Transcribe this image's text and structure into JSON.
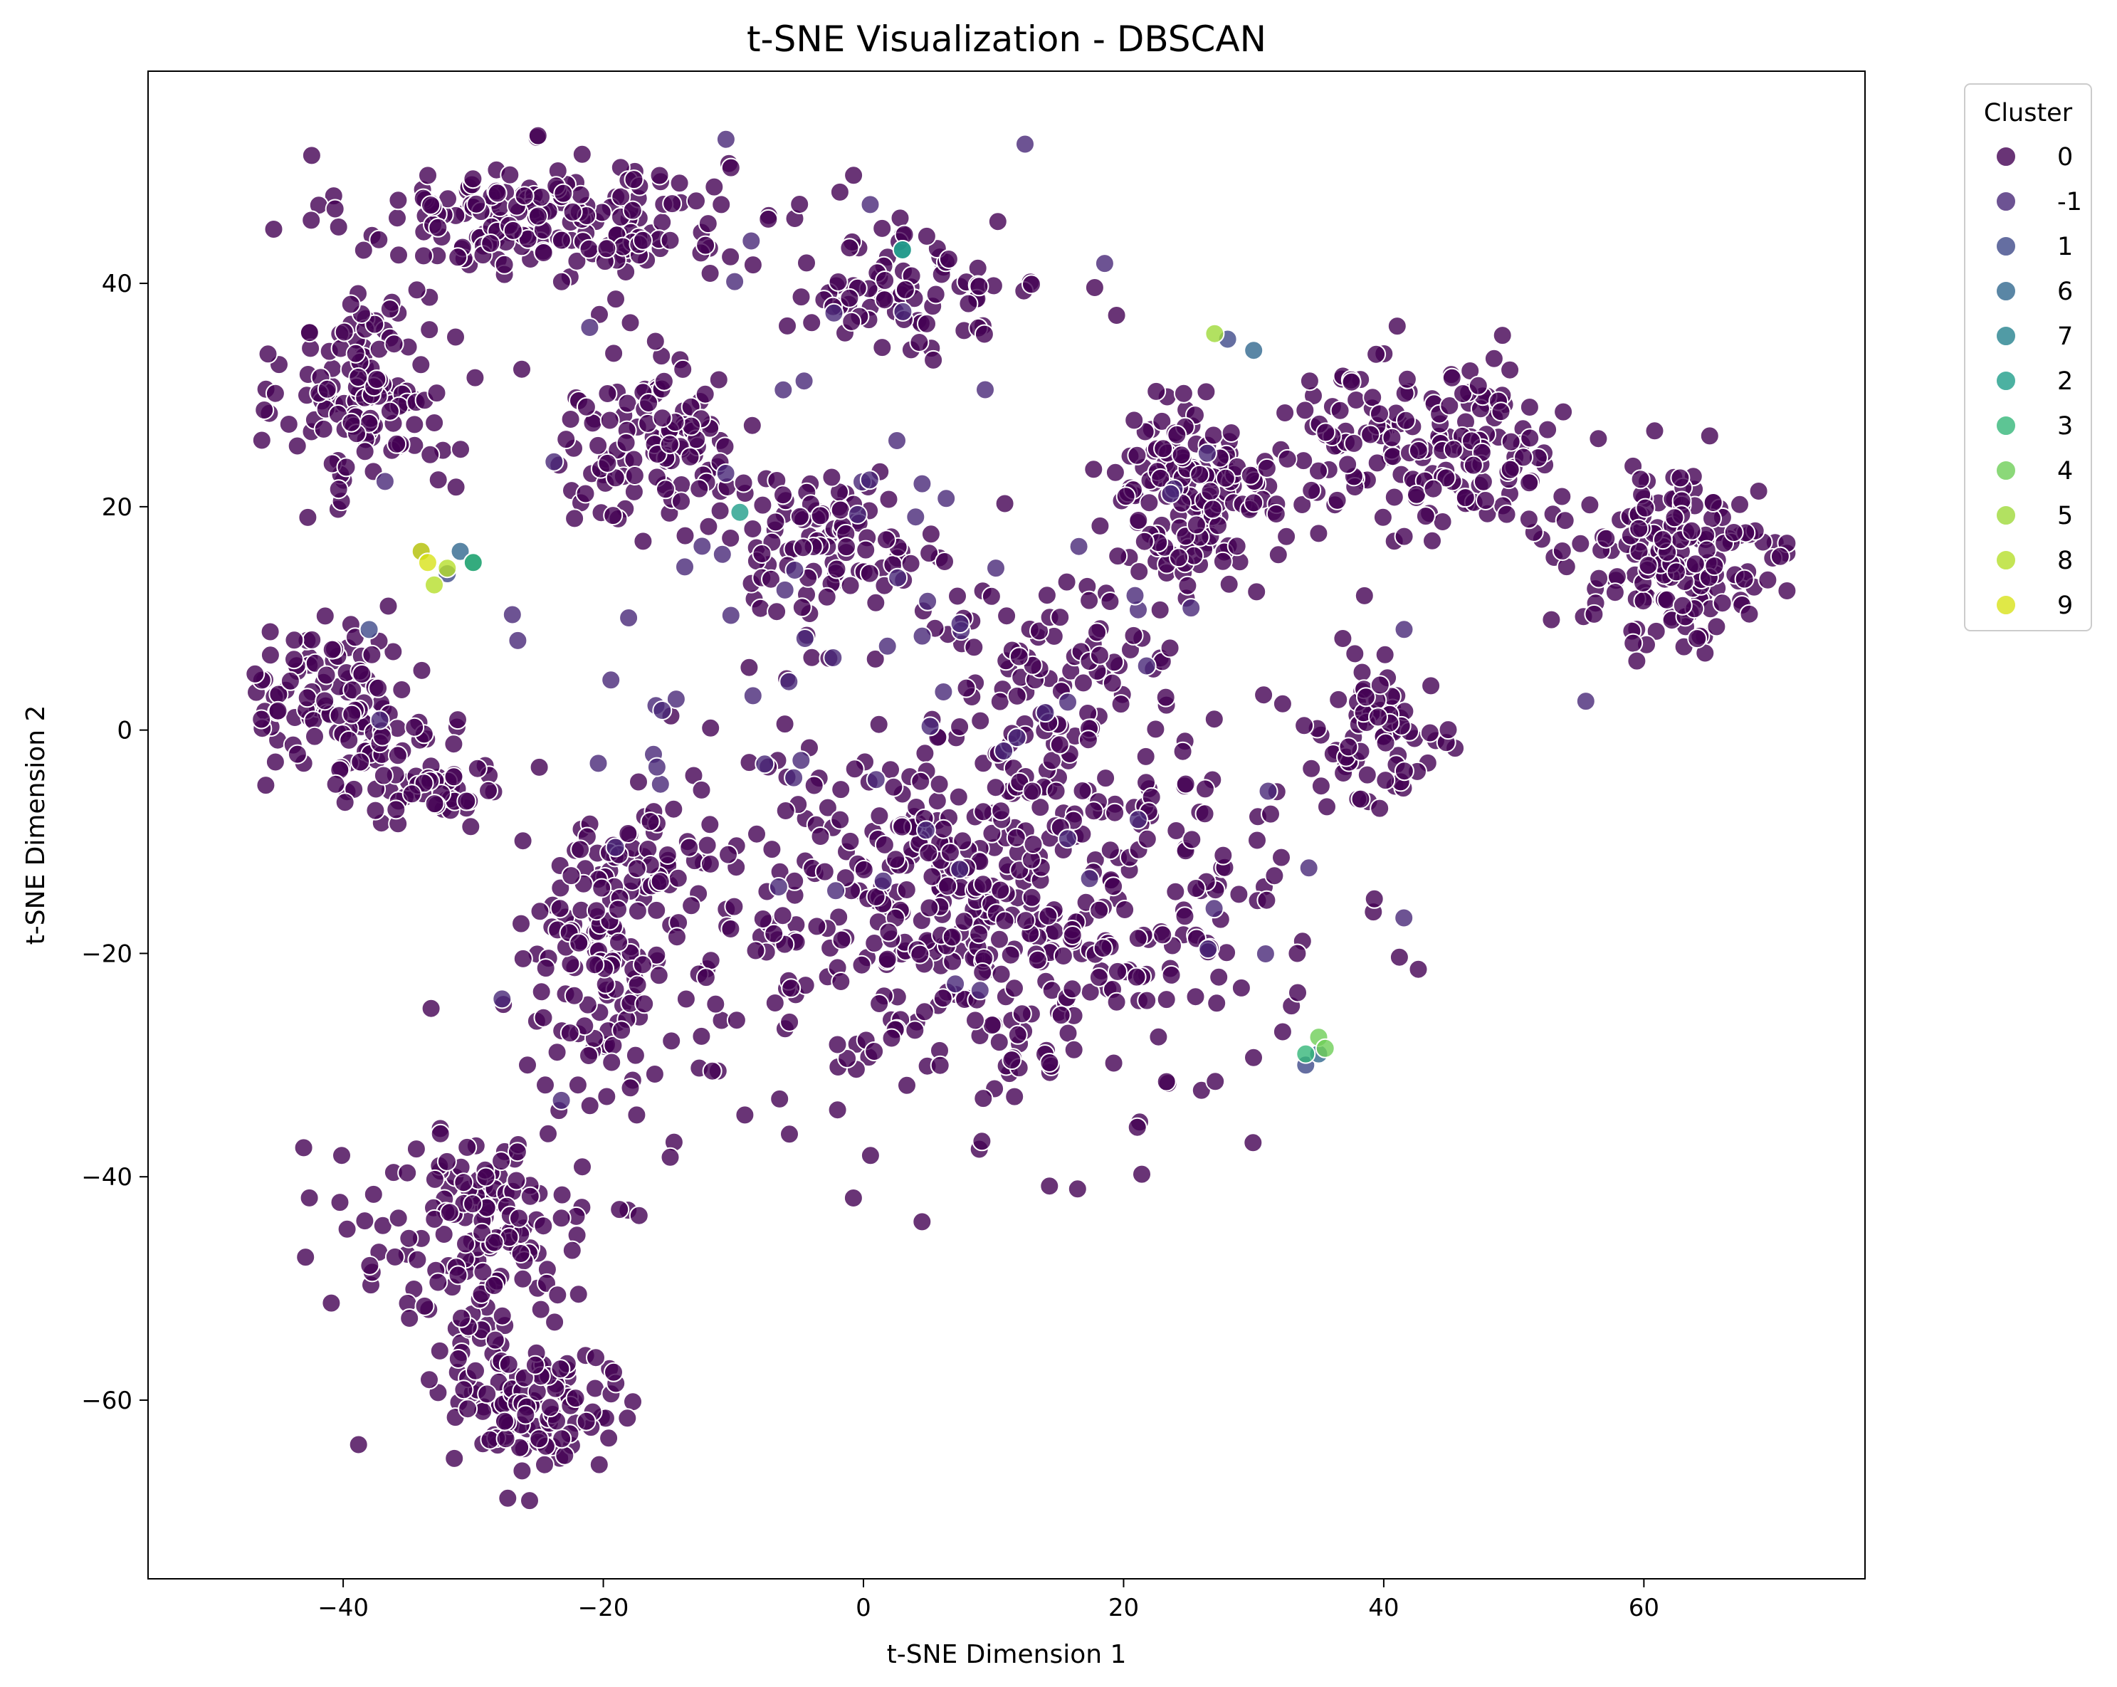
{
  "chart_data": {
    "type": "scatter",
    "title": "t-SNE Visualization - DBSCAN",
    "xlabel": "t-SNE Dimension 1",
    "ylabel": "t-SNE Dimension 2",
    "xlim": [
      -55,
      77
    ],
    "ylim": [
      -76,
      59
    ],
    "x_ticks": [
      -40,
      -20,
      0,
      20,
      40,
      60
    ],
    "y_ticks": [
      -60,
      -40,
      -20,
      0,
      20,
      40
    ],
    "grid": false,
    "legend": {
      "title": "Cluster",
      "placement": "outside-top-right",
      "entries": [
        {
          "label": "0",
          "color": "#440154"
        },
        {
          "label": "-1",
          "color": "#482878"
        },
        {
          "label": "1",
          "color": "#3e4a89"
        },
        {
          "label": "6",
          "color": "#31688e"
        },
        {
          "label": "7",
          "color": "#26828e"
        },
        {
          "label": "2",
          "color": "#1f9e89"
        },
        {
          "label": "3",
          "color": "#35b779"
        },
        {
          "label": "4",
          "color": "#6ece58"
        },
        {
          "label": "5",
          "color": "#9fda3a"
        },
        {
          "label": "8",
          "color": "#b5de2b"
        },
        {
          "label": "9",
          "color": "#d8e219"
        }
      ]
    },
    "point_alpha": 0.8,
    "regions": [
      {
        "series": "0",
        "center": [
          -25,
          46
        ],
        "spread": [
          9,
          3.5
        ],
        "count": 190
      },
      {
        "series": "0",
        "center": [
          -38,
          30
        ],
        "spread": [
          4,
          6
        ],
        "count": 130
      },
      {
        "series": "0",
        "center": [
          -16,
          26
        ],
        "spread": [
          5,
          5
        ],
        "count": 110
      },
      {
        "series": "0",
        "center": [
          3,
          40
        ],
        "spread": [
          7,
          4
        ],
        "count": 90
      },
      {
        "series": "0",
        "center": [
          -3,
          17
        ],
        "spread": [
          6,
          4
        ],
        "count": 100
      },
      {
        "series": "0",
        "center": [
          -41,
          3
        ],
        "spread": [
          4,
          4
        ],
        "count": 90
      },
      {
        "series": "0",
        "center": [
          -34,
          -4
        ],
        "spread": [
          4,
          3
        ],
        "count": 70
      },
      {
        "series": "0",
        "center": [
          10,
          -15
        ],
        "spread": [
          14,
          12
        ],
        "count": 560
      },
      {
        "series": "0",
        "center": [
          15,
          5
        ],
        "spread": [
          6,
          5
        ],
        "count": 60
      },
      {
        "series": "0",
        "center": [
          -20,
          -20
        ],
        "spread": [
          4,
          7
        ],
        "count": 130
      },
      {
        "series": "0",
        "center": [
          -30,
          -45
        ],
        "spread": [
          6,
          6
        ],
        "count": 150
      },
      {
        "series": "0",
        "center": [
          -26,
          -60
        ],
        "spread": [
          5,
          5
        ],
        "count": 120
      },
      {
        "series": "0",
        "center": [
          25,
          20
        ],
        "spread": [
          4,
          6
        ],
        "count": 140
      },
      {
        "series": "0",
        "center": [
          42,
          25
        ],
        "spread": [
          9,
          5
        ],
        "count": 190
      },
      {
        "series": "0",
        "center": [
          63,
          15
        ],
        "spread": [
          5,
          5
        ],
        "count": 160
      },
      {
        "series": "0",
        "center": [
          40,
          0
        ],
        "spread": [
          3,
          4
        ],
        "count": 70
      },
      {
        "series": "0",
        "center": [
          -17,
          -12
        ],
        "spread": [
          3,
          3
        ],
        "count": 35
      },
      {
        "series": "-1",
        "center": [
          0,
          10
        ],
        "spread": [
          22,
          22
        ],
        "count": 90
      }
    ],
    "points": [
      {
        "series": "1",
        "x": -32,
        "y": 14
      },
      {
        "series": "1",
        "x": -30,
        "y": 15
      },
      {
        "series": "1",
        "x": -34,
        "y": 16
      },
      {
        "series": "1",
        "x": -38,
        "y": 9
      },
      {
        "series": "1",
        "x": 28,
        "y": 35
      },
      {
        "series": "1",
        "x": 34,
        "y": -30
      },
      {
        "series": "6",
        "x": -31,
        "y": 16
      },
      {
        "series": "6",
        "x": 30,
        "y": 34
      },
      {
        "series": "6",
        "x": 35,
        "y": -29
      },
      {
        "series": "7",
        "x": -30,
        "y": 15
      },
      {
        "series": "7",
        "x": 3,
        "y": 43
      },
      {
        "series": "2",
        "x": 3,
        "y": 43
      },
      {
        "series": "2",
        "x": -9.5,
        "y": 19.5
      },
      {
        "series": "3",
        "x": -30,
        "y": 15
      },
      {
        "series": "3",
        "x": 34,
        "y": -29
      },
      {
        "series": "4",
        "x": 35,
        "y": -27.5
      },
      {
        "series": "4",
        "x": 35.5,
        "y": -28.5
      },
      {
        "series": "5",
        "x": 27,
        "y": 35.5
      },
      {
        "series": "8",
        "x": -32,
        "y": 14.5
      },
      {
        "series": "8",
        "x": -33,
        "y": 13
      },
      {
        "series": "9",
        "x": -34,
        "y": 16
      },
      {
        "series": "9",
        "x": -33.5,
        "y": 15
      }
    ]
  }
}
